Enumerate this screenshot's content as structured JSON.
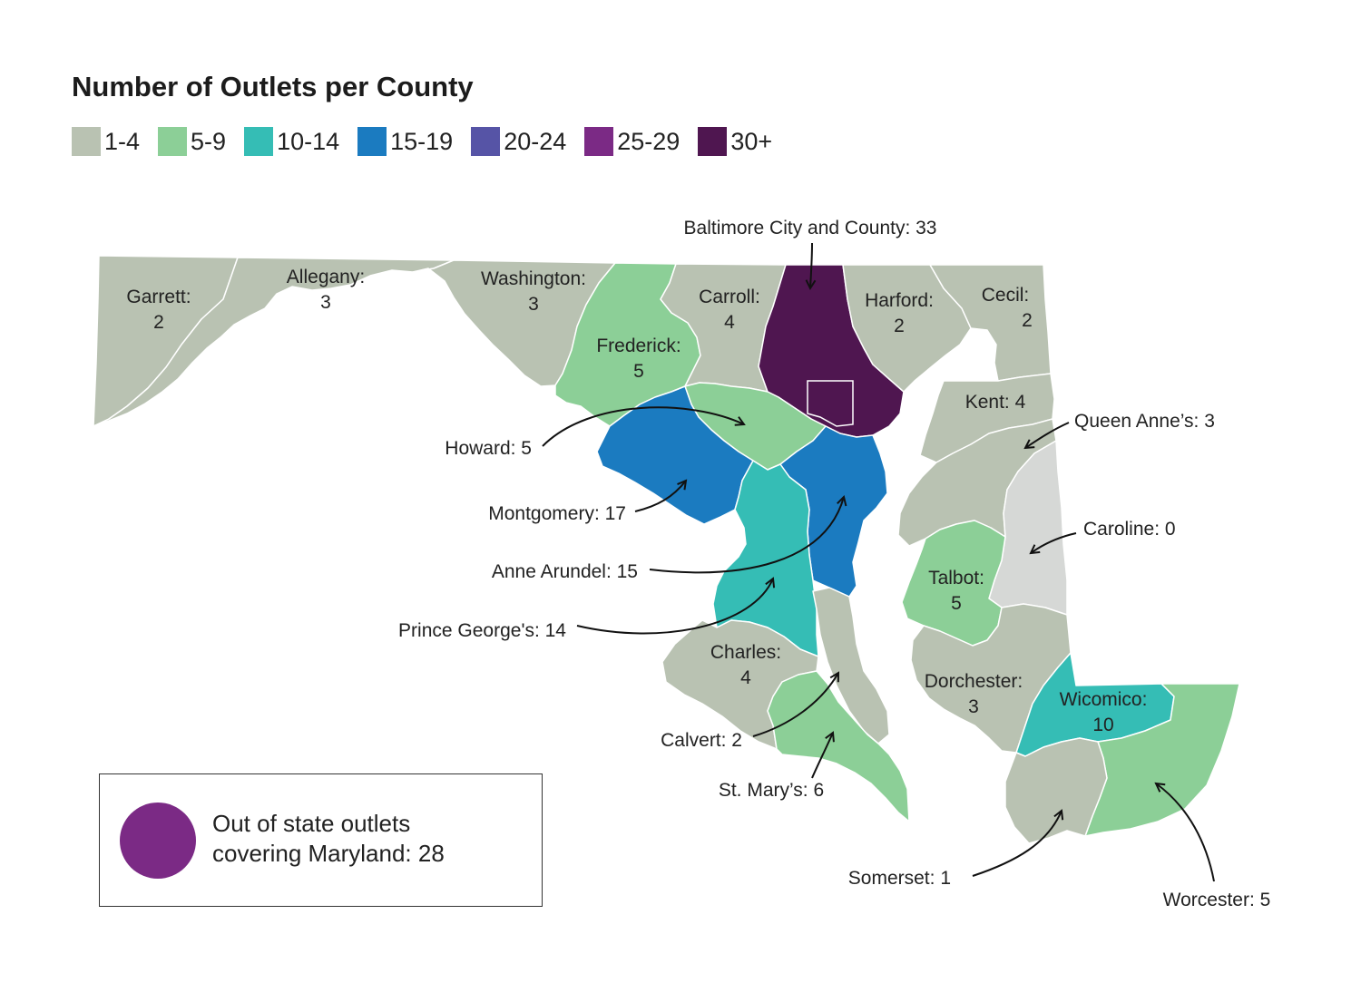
{
  "title": "Number of Outlets per County",
  "legend": [
    {
      "label": "1-4",
      "color": "#b9c2b2"
    },
    {
      "label": "5-9",
      "color": "#8ccf97"
    },
    {
      "label": "10-14",
      "color": "#35bdb5"
    },
    {
      "label": "15-19",
      "color": "#1b7bc0"
    },
    {
      "label": "20-24",
      "color": "#5654a6"
    },
    {
      "label": "25-29",
      "color": "#7b2a85"
    },
    {
      "label": "30+",
      "color": "#4f1650"
    }
  ],
  "zero_color": "#d6d8d6",
  "counties": {
    "garrett": {
      "name": "Garrett:",
      "value": "2"
    },
    "allegany": {
      "name": "Allegany:",
      "value": "3"
    },
    "washington": {
      "name": "Washington:",
      "value": "3"
    },
    "frederick": {
      "name": "Frederick:",
      "value": "5"
    },
    "carroll": {
      "name": "Carroll:",
      "value": "4"
    },
    "harford": {
      "name": "Harford:",
      "value": "2"
    },
    "cecil": {
      "name": "Cecil:",
      "value": "2"
    },
    "kent": {
      "label": "Kent: 4"
    },
    "talbot": {
      "name": "Talbot:",
      "value": "5"
    },
    "charles": {
      "name": "Charles:",
      "value": "4"
    },
    "dorchester": {
      "name": "Dorchester:",
      "value": "3"
    },
    "wicomico": {
      "name": "Wicomico:",
      "value": "10"
    }
  },
  "callouts": {
    "baltimore": "Baltimore City and County: 33",
    "howard": "Howard: 5",
    "montgomery": "Montgomery: 17",
    "anne_arundel": "Anne Arundel: 15",
    "prince_georges": "Prince George's: 14",
    "queen_annes": "Queen Anne’s: 3",
    "caroline": "Caroline: 0",
    "calvert": "Calvert: 2",
    "st_marys": "St. Mary’s: 6",
    "somerset": "Somerset: 1",
    "worcester": "Worcester: 5"
  },
  "out_of_state": {
    "text_line1": "Out of state outlets",
    "text_line2": "covering Maryland: 28",
    "color": "#7b2a85"
  }
}
